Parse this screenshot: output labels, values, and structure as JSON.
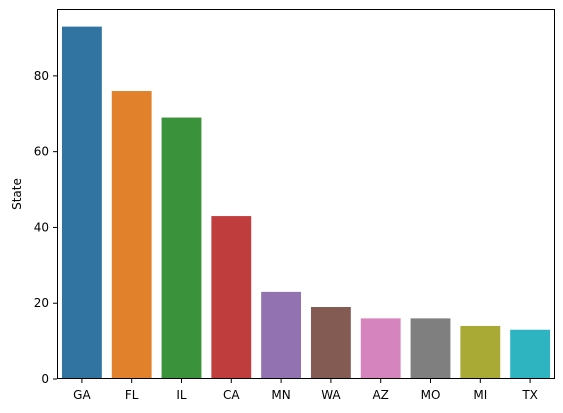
{
  "chart_data": {
    "type": "bar",
    "title": "",
    "xlabel": "",
    "ylabel": "State",
    "categories": [
      "GA",
      "FL",
      "IL",
      "CA",
      "MN",
      "WA",
      "AZ",
      "MO",
      "MI",
      "TX"
    ],
    "values": [
      93,
      76,
      69,
      43,
      23,
      19,
      16,
      16,
      14,
      13
    ],
    "colors": [
      "#3274a1",
      "#e1812c",
      "#3a923a",
      "#c03d3e",
      "#9372b2",
      "#845b53",
      "#d684bd",
      "#7f7f7f",
      "#a9aa35",
      "#2eb4c1"
    ],
    "ylim": [
      0,
      97.65
    ],
    "yticks": [
      0,
      20,
      40,
      60,
      80
    ],
    "grid": false,
    "legend": "none"
  }
}
